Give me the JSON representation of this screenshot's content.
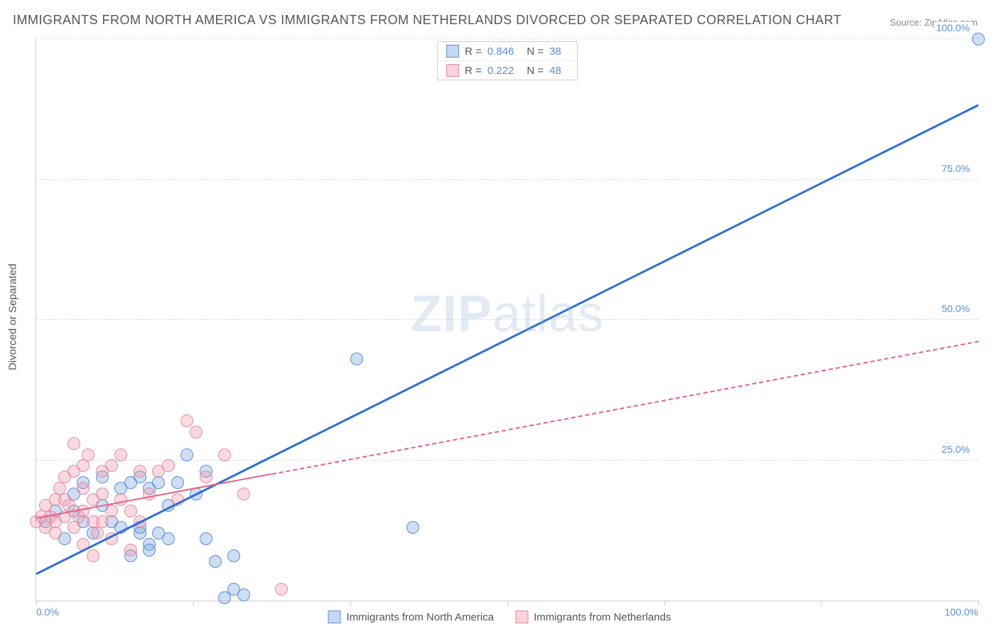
{
  "title": "IMMIGRANTS FROM NORTH AMERICA VS IMMIGRANTS FROM NETHERLANDS DIVORCED OR SEPARATED CORRELATION CHART",
  "source_label": "Source:",
  "source_value": "ZipAtlas.com",
  "y_axis_title": "Divorced or Separated",
  "watermark_bold": "ZIP",
  "watermark_light": "atlas",
  "chart": {
    "type": "scatter",
    "xlim": [
      0,
      100
    ],
    "ylim": [
      0,
      100
    ],
    "y_ticks": [
      25,
      50,
      75,
      100
    ],
    "y_tick_labels": [
      "25.0%",
      "50.0%",
      "75.0%",
      "100.0%"
    ],
    "x_ticks": [
      0,
      16.67,
      33.33,
      50,
      66.67,
      83.33,
      100
    ],
    "x_tick_labels_shown": {
      "0": "0.0%",
      "100": "100.0%"
    },
    "background_color": "#ffffff",
    "grid_color": "#dddddd",
    "axis_color": "#cccccc",
    "tick_label_color": "#5b8dd6",
    "marker_radius": 9,
    "marker_border_width": 1.5,
    "series": [
      {
        "id": "north_america",
        "label": "Immigrants from North America",
        "fill_color": "rgba(120,160,220,0.35)",
        "stroke_color": "#5b8dd6",
        "swatch_fill": "#c5d8f2",
        "swatch_stroke": "#5b8dd6",
        "R": "0.846",
        "N": "38",
        "trend": {
          "x1": 0,
          "y1": 4.5,
          "x2": 100,
          "y2": 88,
          "color": "#2f6fd4",
          "width": 3,
          "dash": "solid",
          "solid_until_x": 100
        },
        "points": [
          [
            1,
            14
          ],
          [
            2,
            16
          ],
          [
            3,
            11
          ],
          [
            4,
            16
          ],
          [
            5,
            14
          ],
          [
            6,
            12
          ],
          [
            7,
            17
          ],
          [
            4,
            19
          ],
          [
            5,
            21
          ],
          [
            7,
            22
          ],
          [
            9,
            20
          ],
          [
            10,
            21
          ],
          [
            11,
            22
          ],
          [
            12,
            20
          ],
          [
            8,
            14
          ],
          [
            9,
            13
          ],
          [
            11,
            12
          ],
          [
            12,
            10
          ],
          [
            13,
            12
          ],
          [
            14,
            11
          ],
          [
            10,
            8
          ],
          [
            11,
            13
          ],
          [
            13,
            21
          ],
          [
            15,
            21
          ],
          [
            16,
            26
          ],
          [
            17,
            19
          ],
          [
            18,
            23
          ],
          [
            14,
            17
          ],
          [
            12,
            9
          ],
          [
            18,
            11
          ],
          [
            19,
            7
          ],
          [
            20,
            0.5
          ],
          [
            21,
            8
          ],
          [
            21,
            2
          ],
          [
            22,
            1
          ],
          [
            34,
            43
          ],
          [
            40,
            13
          ],
          [
            100,
            100
          ]
        ]
      },
      {
        "id": "netherlands",
        "label": "Immigrants from Netherlands",
        "fill_color": "rgba(240,150,170,0.35)",
        "stroke_color": "#e38ca0",
        "swatch_fill": "#f7d3dc",
        "swatch_stroke": "#e38ca0",
        "R": "0.222",
        "N": "48",
        "trend": {
          "x1": 0,
          "y1": 14.5,
          "x2": 100,
          "y2": 46,
          "color": "#e85f85",
          "width": 2,
          "dash": "dashed",
          "solid_until_x": 25
        },
        "points": [
          [
            0,
            14
          ],
          [
            0.5,
            15
          ],
          [
            1,
            13
          ],
          [
            1,
            17
          ],
          [
            1.5,
            15
          ],
          [
            2,
            14
          ],
          [
            2,
            18
          ],
          [
            2,
            12
          ],
          [
            2.5,
            20
          ],
          [
            3,
            15
          ],
          [
            3,
            18
          ],
          [
            3,
            22
          ],
          [
            3.5,
            17
          ],
          [
            4,
            23
          ],
          [
            4,
            28
          ],
          [
            4,
            13
          ],
          [
            4.5,
            15
          ],
          [
            5,
            16
          ],
          [
            5,
            20
          ],
          [
            5,
            24
          ],
          [
            5,
            10
          ],
          [
            5.5,
            26
          ],
          [
            6,
            18
          ],
          [
            6,
            14
          ],
          [
            6,
            8
          ],
          [
            6.5,
            12
          ],
          [
            7,
            23
          ],
          [
            7,
            14
          ],
          [
            7,
            19
          ],
          [
            8,
            24
          ],
          [
            8,
            16
          ],
          [
            8,
            11
          ],
          [
            9,
            26
          ],
          [
            9,
            18
          ],
          [
            10,
            16
          ],
          [
            10,
            9
          ],
          [
            11,
            23
          ],
          [
            11,
            14
          ],
          [
            12,
            19
          ],
          [
            13,
            23
          ],
          [
            14,
            24
          ],
          [
            15,
            18
          ],
          [
            16,
            32
          ],
          [
            17,
            30
          ],
          [
            18,
            22
          ],
          [
            20,
            26
          ],
          [
            22,
            19
          ],
          [
            26,
            2
          ]
        ]
      }
    ]
  },
  "legend_top": {
    "R_label": "R  =",
    "N_label": "N  ="
  }
}
